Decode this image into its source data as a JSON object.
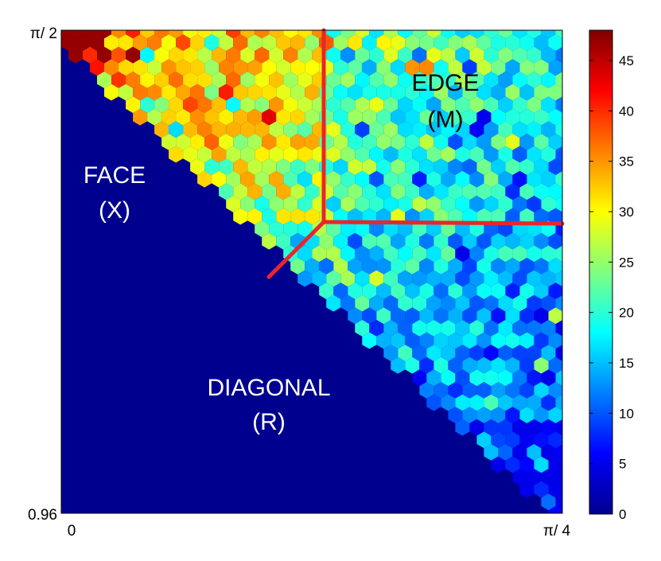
{
  "chart_data": {
    "type": "heatmap",
    "plot": "hexagonal-bin density map",
    "x_tick_labels": [
      "0",
      "π/ 4"
    ],
    "y_tick_labels": [
      "0.96",
      "π/ 2"
    ],
    "regions": [
      {
        "name": "FACE",
        "sub": "(X)",
        "text_color": "#ffffff"
      },
      {
        "name": "EDGE",
        "sub": "(M)",
        "text_color": "#000000"
      },
      {
        "name": "DIAGONAL",
        "sub": "(R)",
        "text_color": "#ffffff"
      }
    ],
    "colorbar": {
      "range": [
        0,
        48
      ],
      "ticks": [
        0,
        5,
        10,
        15,
        20,
        25,
        30,
        35,
        40,
        45
      ]
    },
    "background_color": "#00008f",
    "boundary_line_color": "#e8262c",
    "colormap": "jet"
  }
}
